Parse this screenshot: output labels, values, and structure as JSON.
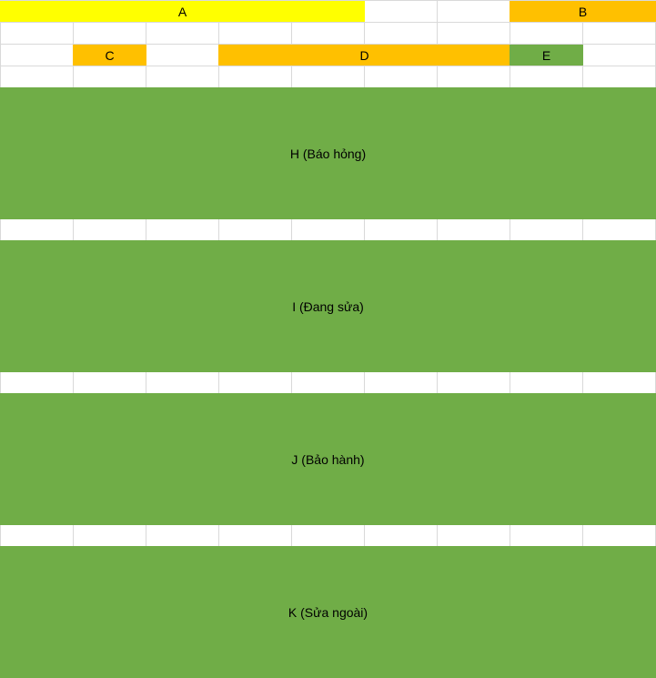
{
  "colors": {
    "yellow": "#ffff00",
    "orange": "#ffc000",
    "green": "#70ad47",
    "gridline": "#d9d9d9"
  },
  "cells": {
    "a": {
      "label": "A",
      "fill": "#ffff00"
    },
    "b": {
      "label": "B",
      "fill": "#ffc000"
    },
    "c": {
      "label": "C",
      "fill": "#ffc000"
    },
    "d": {
      "label": "D",
      "fill": "#ffc000"
    },
    "e": {
      "label": "E",
      "fill": "#70ad47"
    },
    "h": {
      "label": "H (Báo hỏng)",
      "fill": "#70ad47"
    },
    "i": {
      "label": "I (Đang sửa)",
      "fill": "#70ad47"
    },
    "j": {
      "label": "J (Bảo hành)",
      "fill": "#70ad47"
    },
    "k": {
      "label": "K (Sửa ngoài)",
      "fill": "#70ad47"
    }
  }
}
